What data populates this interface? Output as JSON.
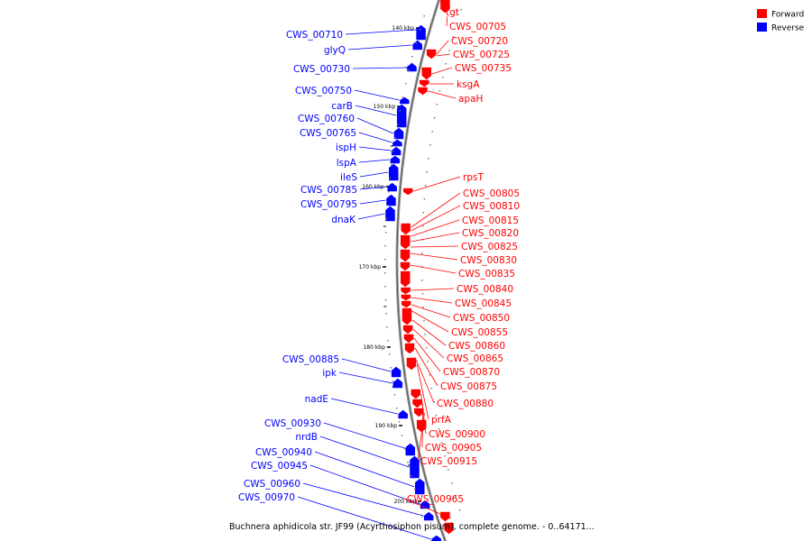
{
  "legend": [
    {
      "label": "Forward",
      "color": "#ff0000"
    },
    {
      "label": "Reverse",
      "color": "#0000ff"
    }
  ],
  "caption": "Buchnera aphidicola str. JF99 (Acyrthosiphon pisum), complete genome. - 0..64171...",
  "scale_ticks": [
    "140 kbp",
    "150 kbp",
    "160 kbp",
    "170 kbp",
    "180 kbp",
    "190 kbp",
    "200 kbp"
  ],
  "reverse_labels": [
    "CWS_00710",
    "glyQ",
    "CWS_00730",
    "CWS_00750",
    "carB",
    "CWS_00760",
    "CWS_00765",
    "ispH",
    "lspA",
    "ileS",
    "CWS_00785",
    "CWS_00795",
    "dnaK",
    "CWS_00885",
    "ipk",
    "nadE",
    "CWS_00930",
    "nrdB",
    "CWS_00940",
    "CWS_00945",
    "CWS_00960",
    "CWS_00970"
  ],
  "forward_labels": [
    "tgt",
    "CWS_00705",
    "CWS_00720",
    "CWS_00725",
    "CWS_00735",
    "ksgA",
    "apaH",
    "rpsT",
    "CWS_00805",
    "CWS_00810",
    "CWS_00815",
    "CWS_00820",
    "CWS_00825",
    "CWS_00830",
    "CWS_00835",
    "CWS_00840",
    "CWS_00845",
    "CWS_00850",
    "CWS_00855",
    "CWS_00860",
    "CWS_00865",
    "CWS_00870",
    "CWS_00875",
    "CWS_00880",
    "prfA",
    "CWS_00900",
    "CWS_00905",
    "CWS_00915",
    "CWS_00965"
  ]
}
